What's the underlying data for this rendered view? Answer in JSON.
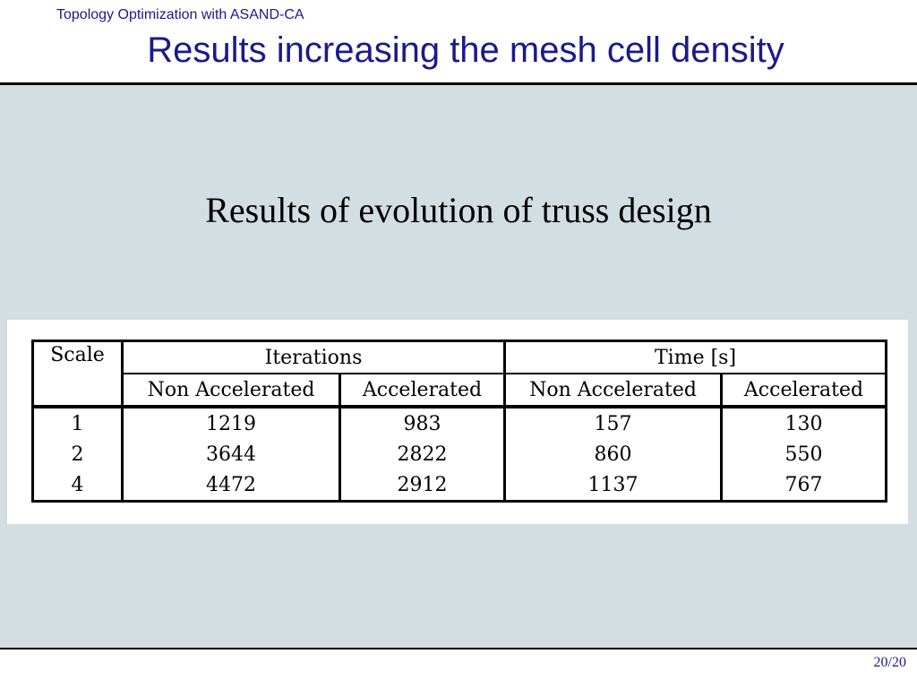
{
  "header": {
    "section_title": "Topology Optimization with ASAND-CA",
    "frame_title": "Results increasing the mesh cell density"
  },
  "main": {
    "caption": "Results of evolution of truss design",
    "table": {
      "col_scale": "Scale",
      "group_iterations": "Iterations",
      "group_time": "Time [s]",
      "sub_non_accel_1": "Non Accelerated",
      "sub_accel_1": "Accelerated",
      "sub_non_accel_2": "Non Accelerated",
      "sub_accel_2": "Accelerated",
      "rows": [
        {
          "scale": "1",
          "iter_non": "1219",
          "iter_acc": "983",
          "time_non": "157",
          "time_acc": "130"
        },
        {
          "scale": "2",
          "iter_non": "3644",
          "iter_acc": "2822",
          "time_non": "860",
          "time_acc": "550"
        },
        {
          "scale": "4",
          "iter_non": "4472",
          "iter_acc": "2912",
          "time_non": "1137",
          "time_acc": "767"
        }
      ]
    }
  },
  "footer": {
    "page_number": "20/20"
  }
}
